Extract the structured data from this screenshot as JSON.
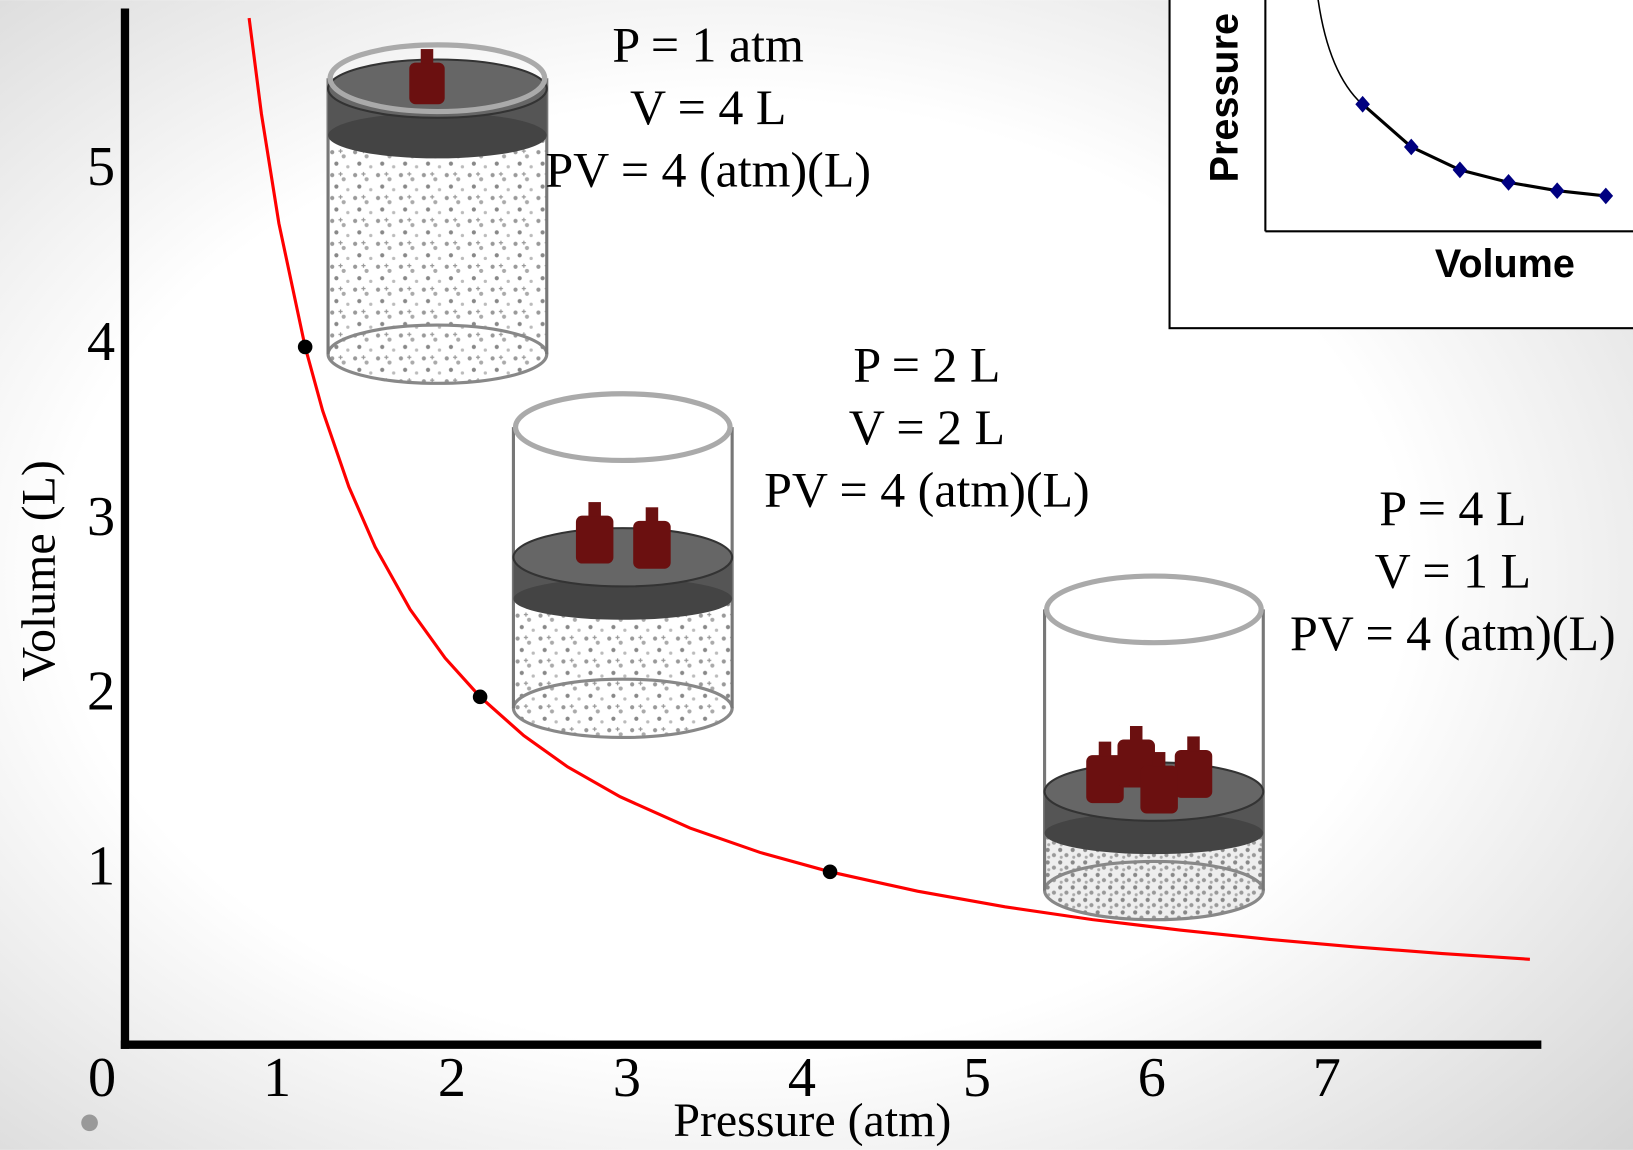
{
  "chart_data": [
    {
      "type": "line",
      "x_label": "Pressure (atm)",
      "y_label": "Volume (L)",
      "xlim": [
        0,
        8
      ],
      "ylim": [
        0,
        6
      ],
      "xticks": [
        0,
        1,
        2,
        3,
        4,
        5,
        6,
        7
      ],
      "yticks": [
        1,
        2,
        3,
        4,
        5
      ],
      "series": [
        {
          "color": "#ff0000",
          "line": true,
          "marker": null,
          "x": [
            0.68,
            0.75,
            0.85,
            1,
            1.1,
            1.25,
            1.4,
            1.6,
            1.8,
            2,
            2.25,
            2.5,
            2.8,
            3.2,
            3.6,
            4,
            4.5,
            5,
            5.5,
            6,
            6.5,
            7,
            7.5,
            8
          ],
          "values": [
            5.88,
            5.333,
            4.706,
            4,
            3.636,
            3.2,
            2.857,
            2.5,
            2.222,
            2,
            1.778,
            1.6,
            1.429,
            1.25,
            1.111,
            1,
            0.889,
            0.8,
            0.727,
            0.667,
            0.615,
            0.571,
            0.533,
            0.5
          ]
        },
        {
          "color": "#000000",
          "line": false,
          "marker": "dot",
          "x": [
            1,
            2,
            4
          ],
          "values": [
            4,
            2,
            1
          ]
        }
      ],
      "annotations": [
        {
          "lines": [
            "P = 1 atm",
            "V = 4 L",
            "PV = 4 (atm)(L)"
          ]
        },
        {
          "lines": [
            "P = 2 L",
            "V = 2 L",
            "PV = 4 (atm)(L)"
          ]
        },
        {
          "lines": [
            "P = 4 L",
            "V = 1 L",
            "PV = 4 (atm)(L)"
          ]
        }
      ]
    },
    {
      "type": "line",
      "x_label": "Volume",
      "y_label": "Pressure",
      "xlim": [
        0,
        10
      ],
      "ylim": [
        0,
        24
      ],
      "series": [
        {
          "color": "#000080",
          "line_color": "#000000",
          "line": true,
          "marker": "diamond",
          "x": [
            2,
            3,
            4,
            5,
            6,
            7
          ],
          "values": [
            12.2,
            8.1,
            5.9,
            4.7,
            3.9,
            3.4
          ]
        }
      ]
    }
  ]
}
